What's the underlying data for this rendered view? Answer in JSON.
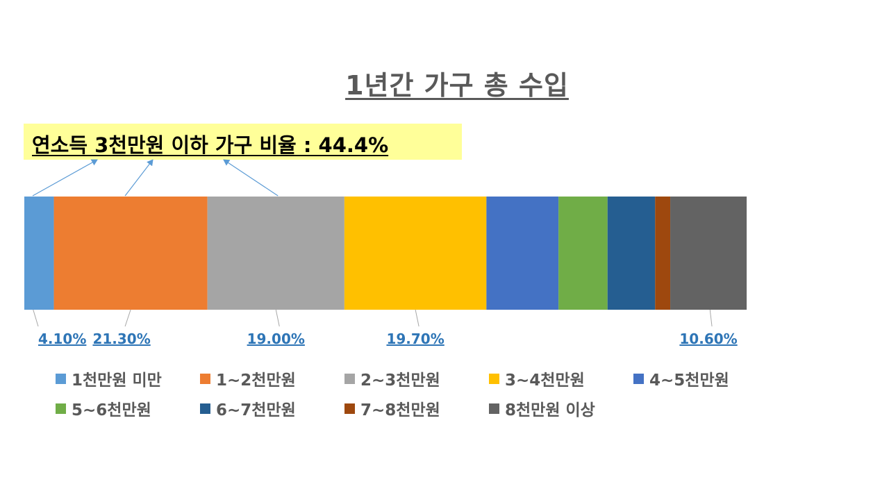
{
  "chart_data": {
    "type": "bar",
    "orientation": "horizontal-stacked-100",
    "title": "1년간 가구 총 수입",
    "annotation": "연소득 3천만원 이하 가구 비율 : 44.4%",
    "series": [
      {
        "name": "1천만원 미만",
        "value": 4.1,
        "label": "4.10%",
        "color": "#5b9bd5"
      },
      {
        "name": "1~2천만원",
        "value": 21.3,
        "label": "21.30%",
        "color": "#ed7d31"
      },
      {
        "name": "2~3천만원",
        "value": 19.0,
        "label": "19.00%",
        "color": "#a5a5a5"
      },
      {
        "name": "3~4천만원",
        "value": 19.7,
        "label": "19.70%",
        "color": "#ffc000"
      },
      {
        "name": "4~5천만원",
        "value": 10.0,
        "label": "",
        "color": "#4472c4"
      },
      {
        "name": "5~6천만원",
        "value": 6.8,
        "label": "",
        "color": "#70ad47"
      },
      {
        "name": "6~7천만원",
        "value": 6.6,
        "label": "",
        "color": "#255e91"
      },
      {
        "name": "7~8천만원",
        "value": 2.1,
        "label": "",
        "color": "#9e480e"
      },
      {
        "name": "8천만원 이상",
        "value": 10.6,
        "label": "10.60%",
        "color": "#636363"
      }
    ],
    "xlim": [
      0,
      100
    ],
    "legend_position": "bottom",
    "grid": false
  }
}
